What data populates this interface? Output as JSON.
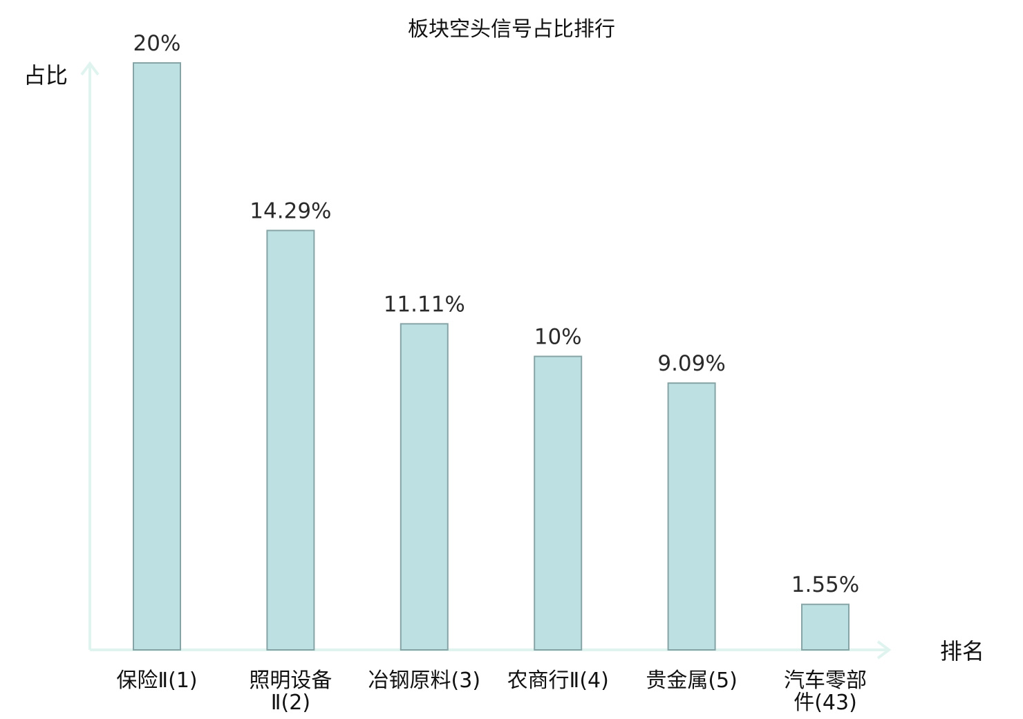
{
  "chart_data": {
    "type": "bar",
    "title": "板块空头信号占比排行",
    "ylabel": "占比",
    "xlabel": "排名",
    "categories": [
      [
        "保险Ⅱ(1)"
      ],
      [
        "照明设备",
        "Ⅱ(2)"
      ],
      [
        "冶钢原料(3)"
      ],
      [
        "农商行Ⅱ(4)"
      ],
      [
        "贵金属(5)"
      ],
      [
        "汽车零部",
        "件(43)"
      ]
    ],
    "values": [
      20,
      14.29,
      11.11,
      10,
      9.09,
      1.55
    ],
    "value_labels": [
      "20%",
      "14.29%",
      "11.11%",
      "10%",
      "9.09%",
      "1.55%"
    ],
    "ylim": [
      0,
      20
    ],
    "grid": false,
    "highlight_index": 5,
    "colors": {
      "bar_fill": "#bde0e2",
      "bar_stroke": "#86a4a6",
      "axis": "#dff3ef",
      "text": "#111111",
      "highlight_text": "#e0201b"
    }
  }
}
